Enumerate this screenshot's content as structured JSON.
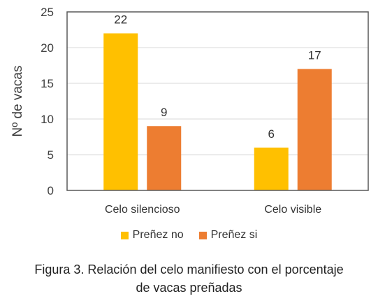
{
  "chart_data": {
    "type": "bar",
    "categories": [
      "Celo silencioso",
      "Celo visible"
    ],
    "series": [
      {
        "name": "Preñez no",
        "values": [
          22,
          6
        ],
        "color": "#FFC000"
      },
      {
        "name": "Preñez si",
        "values": [
          9,
          17
        ],
        "color": "#ED7D31"
      }
    ],
    "ylabel": "Nº de vacas",
    "xlabel": "",
    "ylim": [
      0,
      25
    ],
    "yticks": [
      0,
      5,
      10,
      15,
      20,
      25
    ],
    "grid": true,
    "legend_position": "bottom",
    "data_labels": true
  },
  "caption": {
    "line1": "Figura 3. Relación del celo manifiesto con el porcentaje",
    "line2": "de vacas preñadas"
  }
}
